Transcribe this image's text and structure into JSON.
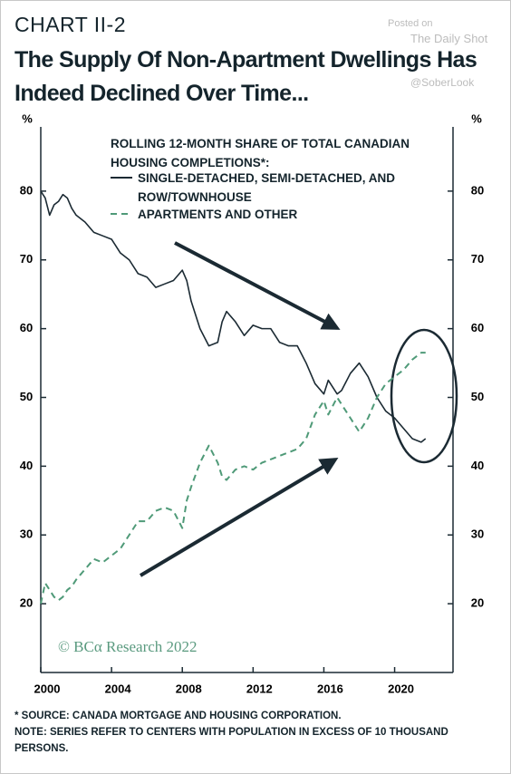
{
  "chart_data": {
    "type": "line",
    "label": "CHART II-2",
    "title": "The Supply Of Non-Apartment Dwellings Has Indeed Declined Over Time...",
    "legend_title": "ROLLING 12-MONTH SHARE OF TOTAL CANADIAN HOUSING COMPLETIONS*:",
    "y_unit": "%",
    "x": [
      2000,
      2000.25,
      2000.5,
      2000.75,
      2001,
      2001.25,
      2001.5,
      2001.75,
      2002,
      2002.5,
      2003,
      2003.5,
      2004,
      2004.5,
      2005,
      2005.5,
      2006,
      2006.5,
      2007,
      2007.5,
      2008,
      2008.25,
      2008.5,
      2009,
      2009.5,
      2010,
      2010.25,
      2010.5,
      2011,
      2011.5,
      2012,
      2012.5,
      2013,
      2013.5,
      2014,
      2014.5,
      2015,
      2015.5,
      2016,
      2016.25,
      2016.75,
      2017,
      2017.5,
      2018,
      2018.5,
      2019,
      2019.5,
      2020,
      2020.5,
      2021,
      2021.5,
      2021.75
    ],
    "series": [
      {
        "name": "SINGLE-DETACHED, SEMI-DETACHED, AND ROW/TOWNHOUSE",
        "color": "#1b2a33",
        "dashed": false,
        "values": [
          80,
          79,
          76.5,
          78,
          78.5,
          79.5,
          79,
          77.5,
          76.5,
          75.5,
          74,
          73.5,
          73,
          71,
          70,
          68,
          67.5,
          66,
          66.5,
          67,
          68.5,
          67,
          64,
          60,
          57.5,
          58,
          61,
          62.5,
          61,
          59,
          60.5,
          60,
          60,
          58,
          57.5,
          57.5,
          55,
          52,
          50.5,
          52.5,
          50.5,
          51,
          53.5,
          55,
          53,
          50,
          48,
          47,
          45.5,
          44,
          43.5,
          44
        ]
      },
      {
        "name": "APARTMENTS AND OTHER",
        "color": "#4f9a78",
        "dashed": true,
        "values": [
          20,
          23,
          22,
          21,
          20.5,
          21,
          22,
          22.5,
          23.5,
          25,
          26.5,
          26,
          27,
          28,
          30,
          32,
          32,
          33.5,
          34,
          33.5,
          31,
          35,
          37,
          40.5,
          43,
          40.5,
          38.5,
          38,
          39.5,
          40,
          39.5,
          40.5,
          41,
          41.5,
          42,
          42.5,
          44,
          47.5,
          49.5,
          47.5,
          50,
          49,
          47,
          45,
          47,
          50,
          52,
          53,
          54,
          55.5,
          56.5,
          56.5
        ]
      }
    ],
    "xlim": [
      2000,
      2023.3
    ],
    "xticks": [
      2000,
      2004,
      2008,
      2012,
      2016,
      2020
    ],
    "ylim": [
      10,
      90
    ],
    "yticks": [
      20,
      30,
      40,
      50,
      60,
      70,
      80
    ],
    "credit": "© BCα Research 2022",
    "source": "* SOURCE: CANADA MORTGAGE AND HOUSING CORPORATION.",
    "note": "NOTE: SERIES REFER TO CENTERS WITH POPULATION IN EXCESS OF 10 THOUSAND PERSONS.",
    "watermark": [
      "Posted on",
      "The Daily Shot",
      "@SoberLook"
    ]
  }
}
